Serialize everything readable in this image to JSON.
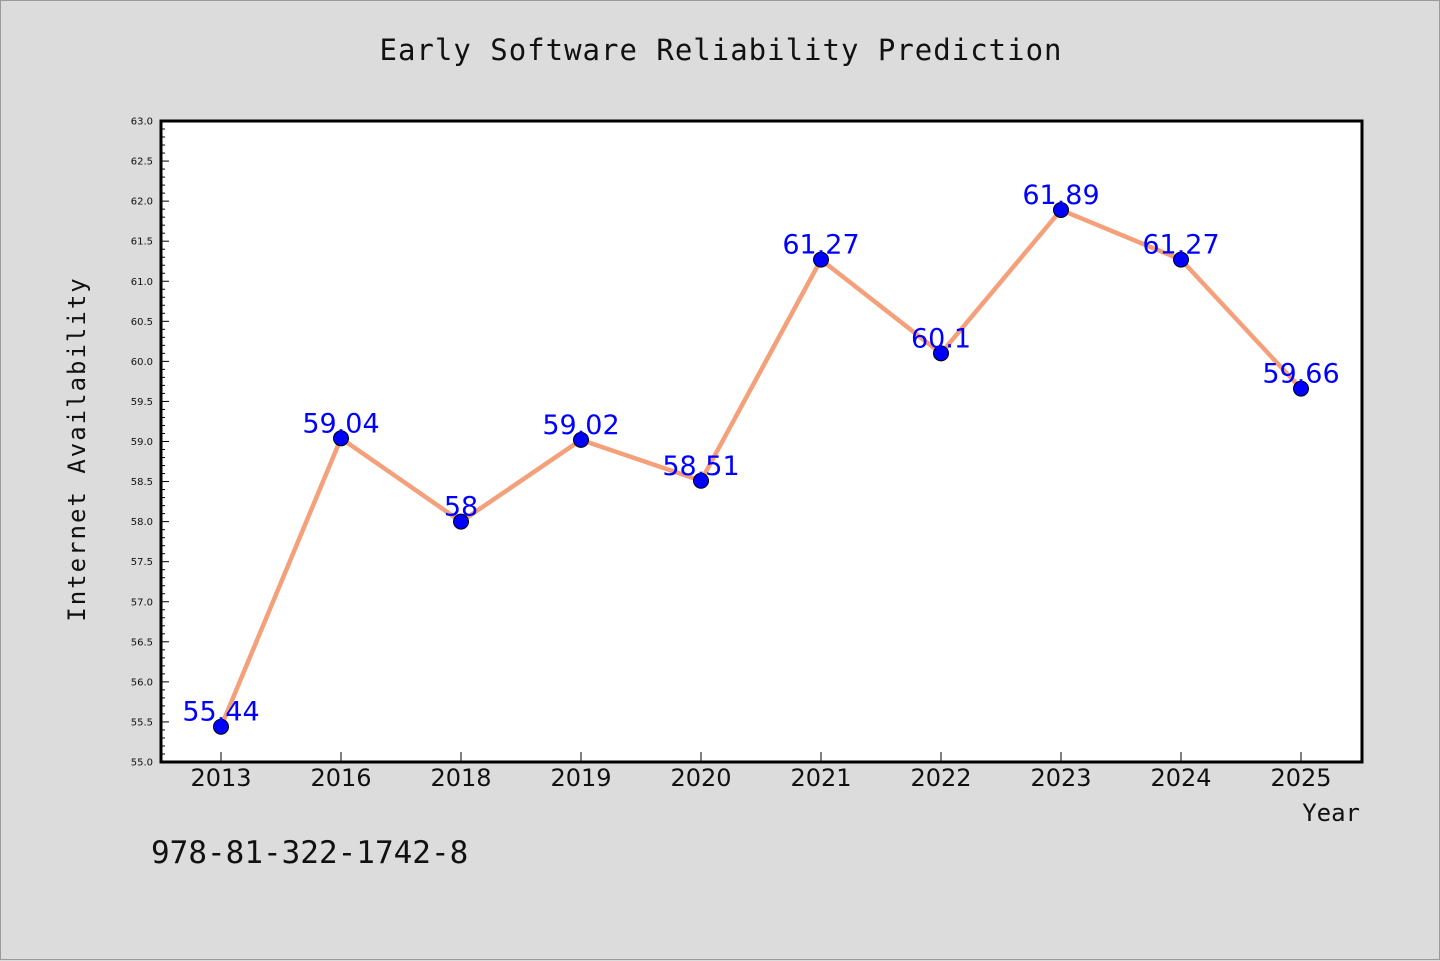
{
  "chart_data": {
    "type": "line",
    "title": "Early Software Reliability Prediction",
    "xlabel": "Year",
    "ylabel": "Internet Availability",
    "categories": [
      "2013",
      "2016",
      "2018",
      "2019",
      "2020",
      "2021",
      "2022",
      "2023",
      "2024",
      "2025"
    ],
    "values": [
      55.44,
      59.04,
      58,
      59.02,
      58.51,
      61.27,
      60.1,
      61.89,
      61.27,
      59.66
    ],
    "data_labels": [
      "55.44",
      "59.04",
      "58",
      "59.02",
      "58.51",
      "61.27",
      "60.1",
      "61.89",
      "61.27",
      "59.66"
    ],
    "ylim": [
      55.0,
      63.0
    ],
    "yticks": [
      "55.0",
      "55.5",
      "56.0",
      "56.5",
      "57.0",
      "57.5",
      "58.0",
      "58.5",
      "59.0",
      "59.5",
      "60.0",
      "60.5",
      "61.0",
      "61.5",
      "62.0",
      "62.5",
      "63.0"
    ],
    "grid": false,
    "line_color": "#f4a07a",
    "marker_color": "#0000ff",
    "label_color": "#0000ff"
  },
  "footer": {
    "text": "978-81-322-1742-8"
  }
}
